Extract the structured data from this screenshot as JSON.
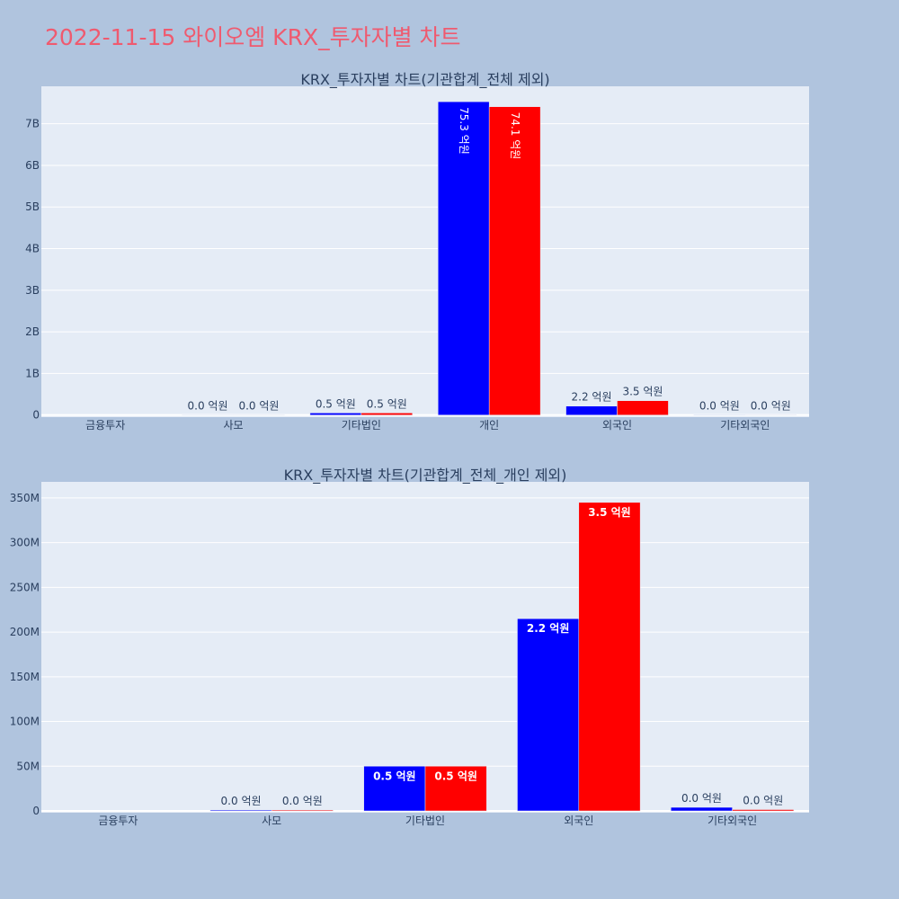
{
  "title": "2022-11-15 와이오엠 KRX_투자자별 차트",
  "colors": {
    "series_a": "#0000ff",
    "series_b": "#ff0000",
    "plot_bg": "#e5ecf6",
    "page_bg": "#b0c4de",
    "title": "#ef5a6f"
  },
  "chart_data": [
    {
      "type": "bar",
      "title": "KRX_투자자별 차트(기관합계_전체 제외)",
      "categories": [
        "금융투자",
        "사모",
        "기타법인",
        "개인",
        "외국인",
        "기타외국인"
      ],
      "series": [
        {
          "color": "#0000ff",
          "values": [
            0,
            1000000,
            50000000,
            7530000000,
            215000000,
            4000000
          ],
          "labels": [
            "",
            "0.0 억원",
            "0.5 억원",
            "75.3 억원",
            "2.2 억원",
            "0.0 억원"
          ]
        },
        {
          "color": "#ff0000",
          "values": [
            0,
            1000000,
            50000000,
            7410000000,
            345000000,
            1500000
          ],
          "labels": [
            "",
            "0.0 억원",
            "0.5 억원",
            "74.1 억원",
            "3.5 억원",
            "0.0 억원"
          ]
        }
      ],
      "ylim": [
        -50000000,
        7900000000
      ],
      "yticks": [
        0,
        1000000000,
        2000000000,
        3000000000,
        4000000000,
        5000000000,
        6000000000,
        7000000000
      ],
      "ytick_labels": [
        "0",
        "1B",
        "2B",
        "3B",
        "4B",
        "5B",
        "6B",
        "7B"
      ],
      "grid": true
    },
    {
      "type": "bar",
      "title": "KRX_투자자별 차트(기관합계_전체_개인 제외)",
      "categories": [
        "금융투자",
        "사모",
        "기타법인",
        "외국인",
        "기타외국인"
      ],
      "series": [
        {
          "color": "#0000ff",
          "values": [
            0,
            1000000,
            50000000,
            215000000,
            4000000
          ],
          "labels": [
            "",
            "0.0 억원",
            "0.5 억원",
            "2.2 억원",
            "0.0 억원"
          ]
        },
        {
          "color": "#ff0000",
          "values": [
            0,
            1000000,
            50000000,
            345000000,
            1500000
          ],
          "labels": [
            "",
            "0.0 억원",
            "0.5 억원",
            "3.5 억원",
            "0.0 억원"
          ]
        }
      ],
      "ylim": [
        -2000000,
        368000000
      ],
      "yticks": [
        0,
        50000000,
        100000000,
        150000000,
        200000000,
        250000000,
        300000000,
        350000000
      ],
      "ytick_labels": [
        "0",
        "50M",
        "100M",
        "150M",
        "200M",
        "250M",
        "300M",
        "350M"
      ],
      "grid": true
    }
  ]
}
